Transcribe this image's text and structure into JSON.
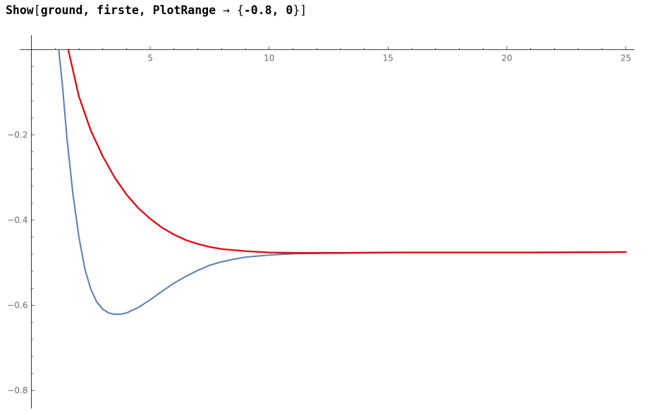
{
  "input": {
    "command": "Show",
    "open_bracket": "[",
    "args": "ground, firste, PlotRange ",
    "arrow": "→",
    "range_open": " {",
    "range": "-0.8, 0",
    "range_close": "}",
    "close_bracket": "]"
  },
  "colors": {
    "ground": "#5e81b5",
    "firste": "#e8000b",
    "axis": "#000000",
    "tick_label": "#6b6b6b"
  },
  "chart_data": {
    "type": "line",
    "title": "",
    "xlabel": "",
    "ylabel": "",
    "xlim": [
      -0.3,
      25.5
    ],
    "ylim": [
      -0.82,
      0.0
    ],
    "x_ticks": [
      5,
      10,
      15,
      20,
      25
    ],
    "y_ticks": [
      -0.2,
      -0.4,
      -0.6,
      -0.8
    ],
    "x_tick_labels": [
      "5",
      "10",
      "15",
      "20",
      "25"
    ],
    "y_tick_labels": [
      "-0.2",
      "-0.4",
      "-0.6",
      "-0.8"
    ],
    "grid": false,
    "legend": "none",
    "series": [
      {
        "color_key": "ground",
        "x": [
          1.15,
          1.3,
          1.5,
          1.75,
          2.0,
          2.25,
          2.5,
          2.75,
          3.0,
          3.25,
          3.5,
          3.75,
          4.0,
          4.5,
          5.0,
          5.5,
          6.0,
          6.5,
          7.0,
          7.5,
          8.0,
          8.5,
          9.0,
          10.0,
          11.0,
          12.0,
          14.0,
          16.0,
          18.0,
          20.0,
          22.0,
          25.0
        ],
        "y": [
          0.0,
          -0.08,
          -0.21,
          -0.34,
          -0.44,
          -0.515,
          -0.562,
          -0.592,
          -0.609,
          -0.618,
          -0.621,
          -0.621,
          -0.618,
          -0.605,
          -0.587,
          -0.567,
          -0.548,
          -0.532,
          -0.518,
          -0.506,
          -0.498,
          -0.492,
          -0.487,
          -0.482,
          -0.479,
          -0.478,
          -0.477,
          -0.476,
          -0.476,
          -0.476,
          -0.476,
          -0.475
        ]
      },
      {
        "color_key": "firste",
        "x": [
          1.55,
          2.0,
          2.5,
          3.0,
          3.5,
          4.0,
          4.5,
          5.0,
          5.5,
          6.0,
          6.5,
          7.0,
          7.5,
          8.0,
          9.0,
          10.0,
          11.0,
          12.0,
          13.0,
          15.0,
          18.0,
          21.0,
          25.0
        ],
        "y": [
          0.0,
          -0.11,
          -0.19,
          -0.25,
          -0.3,
          -0.34,
          -0.372,
          -0.397,
          -0.418,
          -0.434,
          -0.447,
          -0.456,
          -0.463,
          -0.468,
          -0.473,
          -0.476,
          -0.477,
          -0.477,
          -0.477,
          -0.476,
          -0.476,
          -0.476,
          -0.475
        ]
      }
    ]
  }
}
